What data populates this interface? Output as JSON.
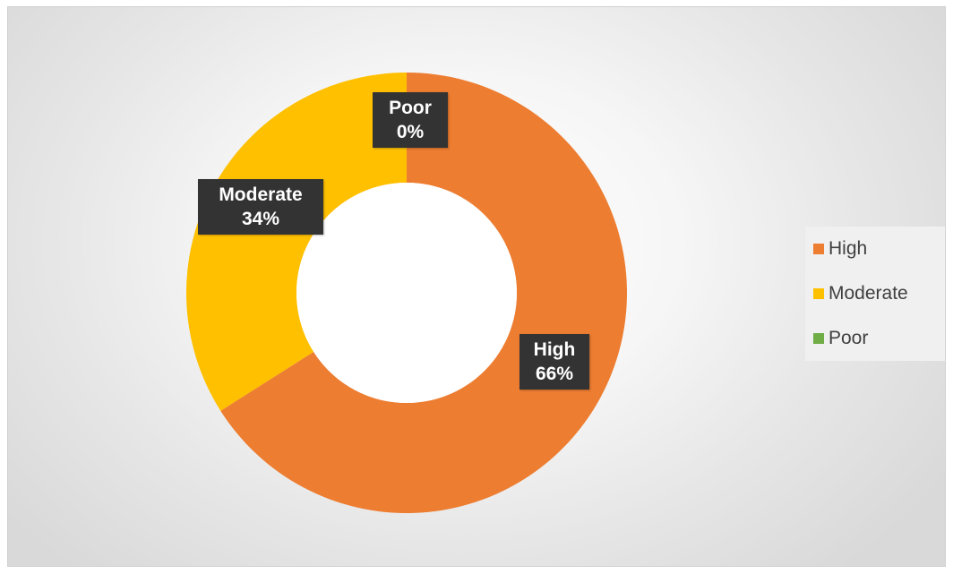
{
  "chart_data": {
    "type": "pie",
    "variant": "donut",
    "categories": [
      "High",
      "Moderate",
      "Poor"
    ],
    "values": [
      66,
      34,
      0
    ],
    "value_labels": [
      "66%",
      "34%",
      "0%"
    ],
    "colors": [
      "#ED7D31",
      "#FFC000",
      "#70AD47"
    ],
    "title": "",
    "legend": {
      "placement": "right",
      "entries": [
        "High",
        "Moderate",
        "Poor"
      ]
    }
  }
}
